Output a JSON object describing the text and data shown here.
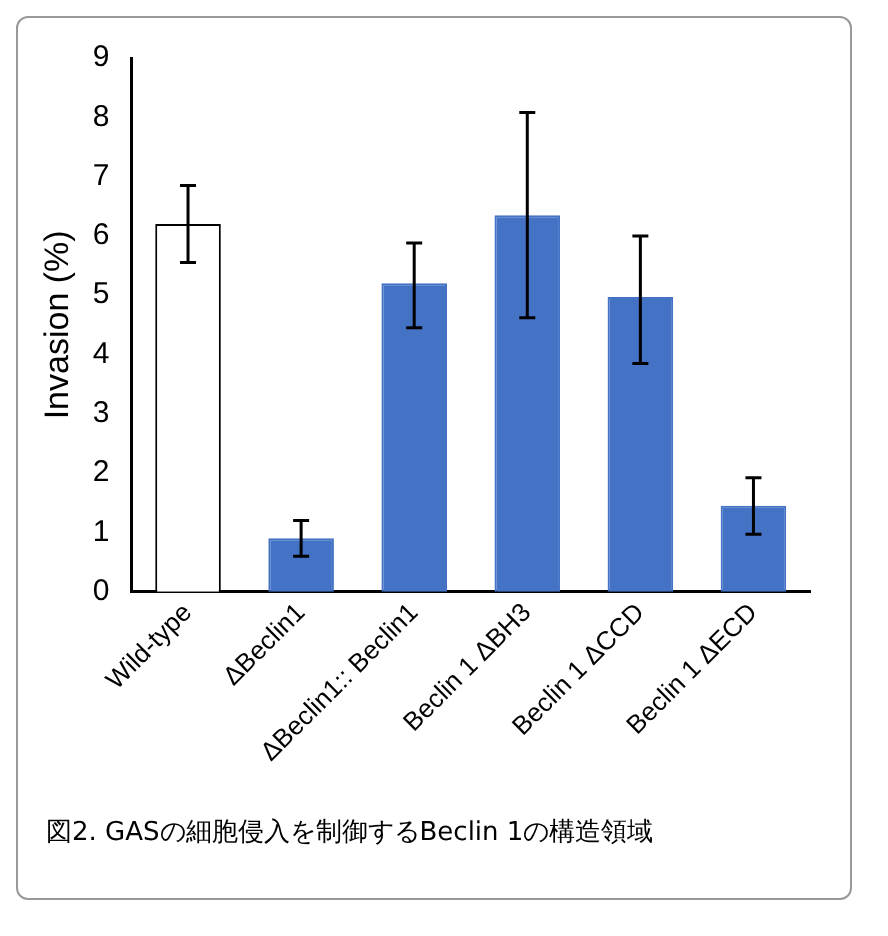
{
  "chart_data": {
    "type": "bar",
    "categories": [
      "Wild-type",
      "ΔBeclin1",
      "ΔBeclin1:: Beclin1",
      "Beclin 1 ΔBH3",
      "Beclin 1 ΔCCD",
      "Beclin 1 ΔECD"
    ],
    "values": [
      6.2,
      0.9,
      5.2,
      6.35,
      4.97,
      1.45
    ],
    "errors": [
      [
        5.55,
        6.85
      ],
      [
        0.6,
        1.2
      ],
      [
        4.45,
        5.88
      ],
      [
        4.62,
        8.08
      ],
      [
        3.85,
        6.0
      ],
      [
        0.97,
        1.92
      ]
    ],
    "colors": [
      "#ffffff",
      "#4472c4",
      "#4472c4",
      "#4472c4",
      "#4472c4",
      "#4472c4"
    ],
    "ylabel": "Invasion (%)",
    "ylim": [
      0,
      9
    ],
    "yticks": [
      0,
      1,
      2,
      3,
      4,
      5,
      6,
      7,
      8,
      9
    ],
    "grid": false,
    "legend": false,
    "annotations": [
      "図2. GASの細胞侵入を制御するBeclin 1の構造領域"
    ]
  }
}
